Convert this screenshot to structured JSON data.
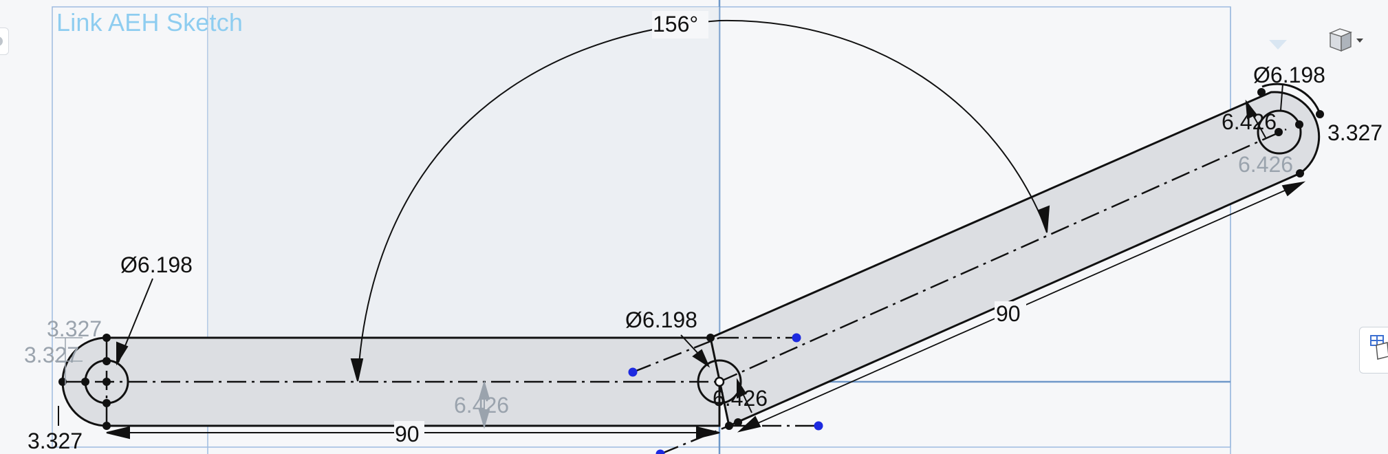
{
  "sketch": {
    "title": "Link AEH Sketch"
  },
  "dimensions": {
    "angle": "156°",
    "dia_left": "Ø6.198",
    "dia_mid": "Ø6.198",
    "dia_right": "Ø6.198",
    "length_bottom": "90",
    "length_diag": "90",
    "width_left_top": "3.327",
    "width_left_side": "3.327",
    "width_left_bottom": "3.327",
    "width_right": "3.327",
    "thickness_center": "6.426",
    "thickness_mid": "6.426",
    "thickness_right_top": "6.426",
    "thickness_right_bottom": "6.426"
  },
  "toolbar": {
    "view_cube_icon": "view-cube-icon",
    "dropdown_icon": "caret-down-icon",
    "side_tab_icon": "sketch-table-icon"
  },
  "colors": {
    "sketch_line": "#111111",
    "body_fill": "#dcdee2",
    "plane_line": "#8aaed6",
    "title": "#8ecdf0",
    "ghost_dim": "#9aa3ad",
    "point_blue": "#1d2ae0"
  }
}
